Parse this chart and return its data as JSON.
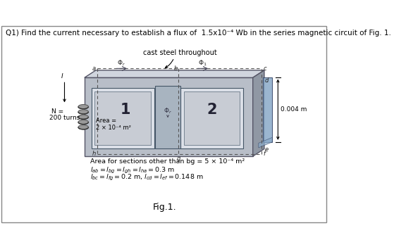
{
  "title": "Q1) Find the current necessary to establish a flux of  1.5x10⁻⁴ Wb in the series magnetic circuit of Fig. 1.",
  "cast_steel_label": "cast steel throughout",
  "gap_label": "0.004 m",
  "N_label": "N =",
  "turns_label": "200 turns",
  "I_label": "I",
  "section1_label": "1",
  "section2_label": "2",
  "area_line1": "Area =",
  "area_line2": "2 × 10⁻⁴ m²",
  "bottom_text1": "Area for sections other than bg = 5 × 10⁻⁴ m²",
  "bottom_text2": "$l_{ab} = l_{bg} = l_{gh} = l_{ha} = 0.3$ m",
  "bottom_text3": "$l_{bc} = l_{fg} = 0.2$ m, $l_{cd} = l_{ef} = 0.148$ m",
  "fig_label": "Fig.1.",
  "bg_color": "#ffffff",
  "border_color": "#aaaaaa",
  "outer_face_color": "#b8bec8",
  "outer_top_color": "#d0d5de",
  "outer_right_color": "#9098a4",
  "inner_win_color": "#dce0e8",
  "center_post_color": "#9fb0c0",
  "gap_color": "#8aaac8",
  "dashed_line_color": "#555555",
  "label_color": "#222222",
  "coil_color1": "#888888",
  "coil_color2": "#aaaaaa"
}
